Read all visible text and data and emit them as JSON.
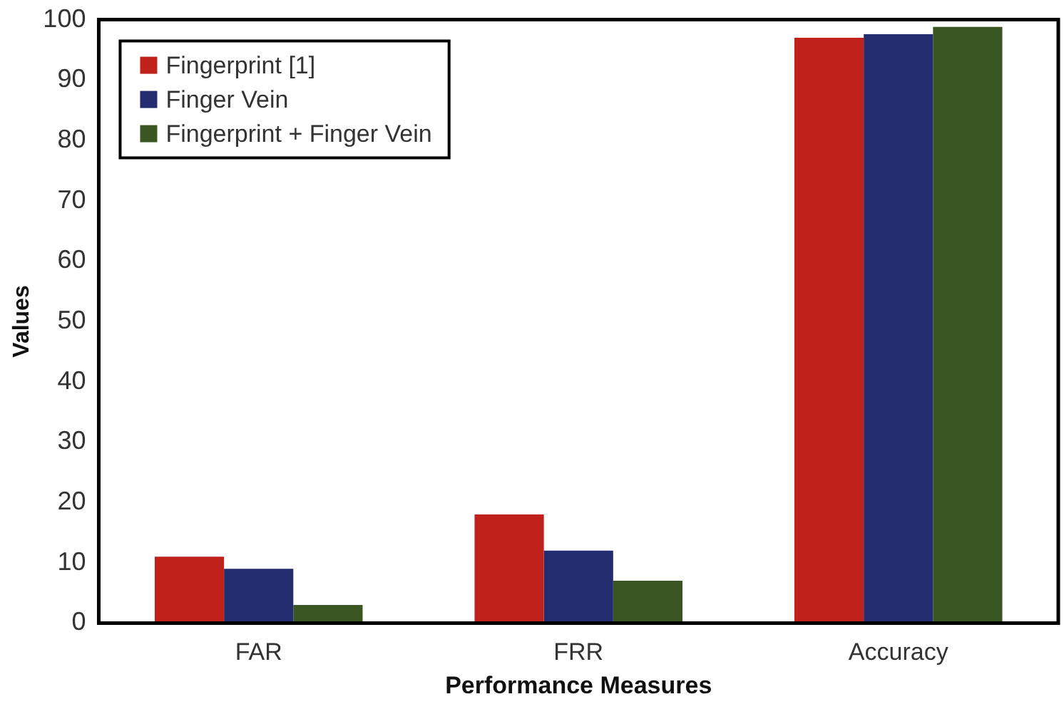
{
  "chart_data": {
    "type": "bar",
    "xlabel": "Performance Measures",
    "ylabel": "Values",
    "categories": [
      "FAR",
      "FRR",
      "Accuracy"
    ],
    "series": [
      {
        "name": "Fingerprint [1]",
        "color": "#c0221b",
        "values": [
          11,
          18,
          97
        ]
      },
      {
        "name": "Finger Vein",
        "color": "#232c6e",
        "values": [
          9,
          12,
          97.6
        ]
      },
      {
        "name": "Fingerprint + Finger Vein",
        "color": "#3a5723",
        "values": [
          3,
          7,
          98.8
        ]
      }
    ],
    "ylim": [
      0,
      100
    ],
    "yticks": [
      0,
      10,
      20,
      30,
      40,
      50,
      60,
      70,
      80,
      90,
      100
    ],
    "grid": false,
    "legend": "top left"
  }
}
